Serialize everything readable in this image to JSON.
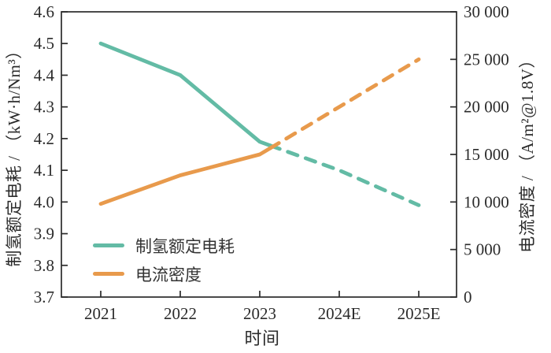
{
  "figure": {
    "background_color": "#ffffff",
    "axis_color": "#2b2b2b",
    "text_color": "#2b2b2b"
  },
  "chart_data": {
    "type": "line",
    "title": "",
    "xlabel": "时间",
    "x_categories": [
      "2021",
      "2022",
      "2023",
      "2024E",
      "2025E"
    ],
    "left_axis": {
      "label": "制氢额定电耗 / （kW·h/Nm³）",
      "tick_labels": [
        "3.7",
        "3.8",
        "3.9",
        "4.0",
        "4.1",
        "4.2",
        "4.3",
        "4.4",
        "4.5",
        "4.6"
      ],
      "range": [
        3.7,
        4.6
      ]
    },
    "right_axis": {
      "label": "电流密度 / （A/m²@1.8V）",
      "tick_labels": [
        "0",
        "5 000",
        "10 000",
        "15 000",
        "20 000",
        "25 000",
        "30 000"
      ],
      "range": [
        0,
        30000
      ]
    },
    "series": [
      {
        "name": "制氢额定电耗",
        "axis": "left",
        "color": "#63BBA5",
        "values": [
          4.5,
          4.4,
          4.19,
          4.1,
          3.99
        ],
        "style_note": "solid through 2023, dashed (forecast) after"
      },
      {
        "name": "电流密度",
        "axis": "right",
        "color": "#E89A4C",
        "values": [
          9800,
          12800,
          15000,
          20000,
          25000
        ],
        "style_note": "solid through 2023, dashed (forecast) after"
      }
    ],
    "legend": {
      "position": "lower-left-inside",
      "entries": [
        "制氢额定电耗",
        "电流密度"
      ]
    },
    "grid": false,
    "forecast_split_index": 2
  }
}
